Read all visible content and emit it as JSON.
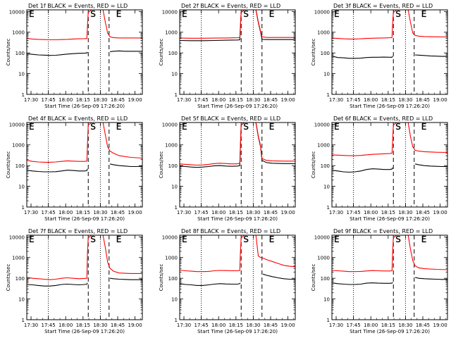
{
  "figure": {
    "xlabel": "Start Time (26-Sep-09 17:26:20)",
    "ylabel": "Counts/sec",
    "colors": {
      "events": "#000000",
      "lld": "#ff0000",
      "axes": "#000000",
      "background": "#ffffff"
    },
    "x_tick_labels": [
      "17:30",
      "17:45",
      "18:00",
      "18:15",
      "18:30",
      "18:45",
      "19:00"
    ],
    "x_tick_values_min": [
      3.67,
      18.67,
      33.67,
      48.67,
      63.67,
      78.67,
      93.67
    ],
    "x_range_min": [
      0,
      100
    ],
    "y_scale": "log",
    "y_range": [
      1,
      12000
    ],
    "y_tick_labels": [
      "1",
      "10",
      "100",
      "1000",
      "10000"
    ],
    "y_tick_values": [
      1,
      10,
      100,
      1000,
      10000
    ],
    "dotted_lines_min": [
      18.67,
      63.67
    ],
    "dashed_lines_min": [
      53.2,
      71.2
    ],
    "segment_markers": [
      "E",
      "S",
      "E"
    ],
    "grid": false,
    "legend": "none"
  },
  "chart_data": [
    {
      "type": "line",
      "title": "Det 1f BLACK = Events, RED = LLD",
      "segment_markers": [
        "E",
        "S",
        "E"
      ],
      "series": [
        {
          "name": "BLACK = Events",
          "color": "#000000",
          "x": [
            0,
            5,
            10,
            15,
            20,
            25,
            30,
            35,
            40,
            45,
            50,
            52,
            52.5,
            53.2,
            71.2,
            72,
            75,
            80,
            85,
            90,
            95,
            100
          ],
          "values": [
            90,
            85,
            80,
            78,
            76,
            77,
            82,
            88,
            92,
            96,
            98,
            100,
            110,
            null,
            null,
            115,
            120,
            125,
            120,
            120,
            120,
            120
          ]
        },
        {
          "name": "RED = LLD",
          "color": "#ff0000",
          "x": [
            0,
            5,
            10,
            15,
            20,
            25,
            30,
            35,
            40,
            45,
            50,
            52,
            52.5,
            53.2,
            56,
            60,
            63,
            66,
            68,
            70,
            72,
            75,
            80,
            90,
            100
          ],
          "values": [
            500,
            470,
            450,
            440,
            430,
            430,
            440,
            450,
            470,
            480,
            490,
            500,
            2000,
            9000,
            12000,
            12000,
            12000,
            12000,
            3000,
            900,
            600,
            550,
            530,
            530,
            530
          ]
        }
      ]
    },
    {
      "type": "line",
      "title": "Det 2f BLACK = Events, RED = LLD",
      "segment_markers": [
        "E",
        "S",
        "E"
      ],
      "series": [
        {
          "name": "BLACK = Events",
          "color": "#000000",
          "x": [
            0,
            10,
            20,
            30,
            40,
            50,
            52,
            53.2,
            56,
            60,
            63,
            66,
            68,
            70,
            71.2,
            75,
            80,
            90,
            100
          ],
          "values": [
            400,
            390,
            390,
            400,
            410,
            420,
            430,
            9000,
            12000,
            12000,
            12000,
            12000,
            3000,
            1000,
            450,
            440,
            440,
            440,
            440
          ]
        },
        {
          "name": "RED = LLD",
          "color": "#ff0000",
          "x": [
            0,
            10,
            20,
            30,
            40,
            50,
            52,
            53.2,
            56,
            60,
            63,
            66,
            68,
            70,
            71.2,
            75,
            80,
            90,
            100
          ],
          "values": [
            520,
            510,
            510,
            520,
            530,
            540,
            550,
            9500,
            12000,
            12000,
            12000,
            12000,
            3200,
            1100,
            600,
            560,
            560,
            560,
            560
          ]
        }
      ]
    },
    {
      "type": "line",
      "title": "Det 3f BLACK = Events, RED = LLD",
      "segment_markers": [
        "E",
        "S",
        "E"
      ],
      "series": [
        {
          "name": "BLACK = Events",
          "color": "#000000",
          "x": [
            0,
            5,
            10,
            15,
            20,
            25,
            30,
            35,
            40,
            45,
            50,
            52,
            52.5,
            53.2,
            71.2,
            72,
            75,
            80,
            85,
            90,
            95,
            100
          ],
          "values": [
            70,
            60,
            58,
            55,
            55,
            56,
            60,
            62,
            62,
            63,
            62,
            62,
            70,
            null,
            null,
            80,
            78,
            75,
            72,
            70,
            68,
            68
          ]
        },
        {
          "name": "RED = LLD",
          "color": "#ff0000",
          "x": [
            0,
            5,
            10,
            15,
            20,
            25,
            30,
            35,
            40,
            45,
            50,
            52,
            52.5,
            53.2,
            56,
            60,
            63,
            66,
            68,
            70,
            72,
            75,
            80,
            90,
            100
          ],
          "values": [
            520,
            500,
            480,
            470,
            470,
            480,
            500,
            510,
            520,
            530,
            540,
            550,
            2500,
            9000,
            12000,
            12000,
            12000,
            12000,
            3000,
            900,
            700,
            650,
            620,
            600,
            590
          ]
        }
      ]
    },
    {
      "type": "line",
      "title": "Det 4f BLACK = Events, RED = LLD",
      "segment_markers": [
        "E",
        "S",
        "E"
      ],
      "series": [
        {
          "name": "BLACK = Events",
          "color": "#000000",
          "x": [
            0,
            5,
            10,
            15,
            20,
            25,
            30,
            35,
            40,
            45,
            50,
            52,
            52.5,
            53.2,
            71.2,
            72,
            75,
            80,
            85,
            90,
            95,
            100
          ],
          "values": [
            60,
            55,
            52,
            50,
            50,
            51,
            55,
            60,
            58,
            55,
            55,
            57,
            70,
            null,
            null,
            120,
            110,
            100,
            95,
            90,
            90,
            92
          ]
        },
        {
          "name": "RED = LLD",
          "color": "#ff0000",
          "x": [
            0,
            5,
            10,
            15,
            20,
            25,
            30,
            35,
            40,
            45,
            50,
            52,
            52.5,
            53.2,
            56,
            60,
            63,
            66,
            68,
            70,
            72,
            75,
            80,
            90,
            100
          ],
          "values": [
            180,
            160,
            150,
            145,
            145,
            150,
            160,
            170,
            165,
            160,
            160,
            165,
            1000,
            9000,
            12000,
            12000,
            12000,
            12000,
            3000,
            800,
            500,
            400,
            300,
            250,
            230
          ]
        }
      ]
    },
    {
      "type": "line",
      "title": "Det 5f BLACK = Events, RED = LLD",
      "segment_markers": [
        "E",
        "S",
        "E"
      ],
      "series": [
        {
          "name": "BLACK = Events",
          "color": "#000000",
          "x": [
            0,
            5,
            10,
            15,
            20,
            25,
            30,
            35,
            40,
            45,
            50,
            52,
            53.2,
            56,
            60,
            63,
            66,
            68,
            70,
            71.2,
            75,
            80,
            90,
            100
          ],
          "values": [
            95,
            90,
            85,
            82,
            85,
            90,
            98,
            100,
            95,
            92,
            95,
            100,
            9000,
            12000,
            12000,
            12000,
            12000,
            2500,
            800,
            180,
            140,
            130,
            125,
            125
          ]
        },
        {
          "name": "RED = LLD",
          "color": "#ff0000",
          "x": [
            0,
            5,
            10,
            15,
            20,
            25,
            30,
            35,
            40,
            45,
            50,
            52,
            53.2,
            56,
            60,
            63,
            66,
            68,
            70,
            71.2,
            75,
            80,
            90,
            100
          ],
          "values": [
            120,
            115,
            110,
            105,
            108,
            115,
            125,
            130,
            125,
            120,
            122,
            130,
            9500,
            12000,
            12000,
            12000,
            12000,
            2700,
            900,
            220,
            180,
            170,
            165,
            165
          ]
        }
      ]
    },
    {
      "type": "line",
      "title": "Det 6f BLACK = Events, RED = LLD",
      "segment_markers": [
        "E",
        "S",
        "E"
      ],
      "series": [
        {
          "name": "BLACK = Events",
          "color": "#000000",
          "x": [
            0,
            5,
            10,
            15,
            20,
            25,
            30,
            35,
            40,
            45,
            50,
            52,
            52.5,
            53.2,
            71.2,
            72,
            75,
            80,
            85,
            90,
            95,
            100
          ],
          "values": [
            60,
            55,
            50,
            48,
            50,
            55,
            65,
            70,
            68,
            65,
            65,
            68,
            80,
            null,
            null,
            120,
            110,
            100,
            95,
            92,
            90,
            90
          ]
        },
        {
          "name": "RED = LLD",
          "color": "#ff0000",
          "x": [
            0,
            5,
            10,
            15,
            20,
            25,
            30,
            35,
            40,
            45,
            50,
            52,
            53.2,
            56,
            60,
            63,
            66,
            68,
            70,
            72,
            75,
            80,
            90,
            100
          ],
          "values": [
            330,
            320,
            310,
            300,
            300,
            310,
            330,
            350,
            360,
            370,
            380,
            400,
            9000,
            12000,
            12000,
            12000,
            12000,
            2500,
            800,
            550,
            500,
            470,
            440,
            430
          ]
        }
      ]
    },
    {
      "type": "line",
      "title": "Det 7f BLACK = Events, RED = LLD",
      "segment_markers": [
        "E",
        "S",
        "E"
      ],
      "series": [
        {
          "name": "BLACK = Events",
          "color": "#000000",
          "x": [
            0,
            5,
            10,
            15,
            20,
            25,
            30,
            35,
            40,
            45,
            50,
            52,
            52.5,
            53.2,
            71.2,
            72,
            75,
            80,
            85,
            90,
            95,
            100
          ],
          "values": [
            50,
            48,
            45,
            42,
            42,
            45,
            50,
            52,
            50,
            48,
            50,
            52,
            60,
            null,
            null,
            100,
            95,
            90,
            88,
            85,
            85,
            85
          ]
        },
        {
          "name": "RED = LLD",
          "color": "#ff0000",
          "x": [
            0,
            5,
            10,
            15,
            20,
            25,
            30,
            35,
            40,
            45,
            50,
            52,
            52.5,
            53.2,
            56,
            60,
            63,
            66,
            68,
            70,
            72,
            75,
            80,
            90,
            100
          ],
          "values": [
            110,
            100,
            95,
            90,
            85,
            90,
            100,
            105,
            100,
            95,
            98,
            100,
            1500,
            9000,
            12000,
            12000,
            12000,
            12000,
            3000,
            600,
            300,
            220,
            180,
            170,
            170
          ]
        }
      ]
    },
    {
      "type": "line",
      "title": "Det 8f BLACK = Events, RED = LLD",
      "segment_markers": [
        "E",
        "S",
        "E"
      ],
      "series": [
        {
          "name": "BLACK = Events",
          "color": "#000000",
          "x": [
            0,
            5,
            10,
            15,
            20,
            25,
            30,
            35,
            40,
            45,
            50,
            52,
            52.5,
            53.2,
            71.2,
            72,
            75,
            80,
            85,
            90,
            95,
            100
          ],
          "values": [
            55,
            50,
            48,
            45,
            45,
            48,
            52,
            55,
            53,
            52,
            52,
            55,
            60,
            null,
            null,
            160,
            140,
            120,
            105,
            95,
            90,
            90
          ]
        },
        {
          "name": "RED = LLD",
          "color": "#ff0000",
          "x": [
            0,
            5,
            10,
            15,
            20,
            25,
            30,
            35,
            40,
            45,
            50,
            52,
            52.5,
            53.2,
            56,
            60,
            63,
            66,
            68,
            70,
            72,
            75,
            80,
            85,
            90,
            95,
            100
          ],
          "values": [
            250,
            230,
            220,
            210,
            210,
            215,
            230,
            240,
            235,
            230,
            230,
            240,
            1500,
            9000,
            12000,
            12000,
            12000,
            12000,
            1200,
            1000,
            950,
            800,
            650,
            520,
            420,
            380,
            360
          ]
        }
      ]
    },
    {
      "type": "line",
      "title": "Det 9f BLACK = Events, RED = LLD",
      "segment_markers": [
        "E",
        "S",
        "E"
      ],
      "series": [
        {
          "name": "BLACK = Events",
          "color": "#000000",
          "x": [
            0,
            5,
            10,
            15,
            20,
            25,
            30,
            35,
            40,
            45,
            50,
            52,
            52.5,
            53.2,
            71.2,
            72,
            75,
            80,
            85,
            90,
            95,
            100
          ],
          "values": [
            60,
            55,
            52,
            50,
            50,
            52,
            58,
            60,
            58,
            57,
            57,
            58,
            65,
            null,
            null,
            110,
            100,
            95,
            92,
            90,
            88,
            88
          ]
        },
        {
          "name": "RED = LLD",
          "color": "#ff0000",
          "x": [
            0,
            5,
            10,
            15,
            20,
            25,
            30,
            35,
            40,
            45,
            50,
            52,
            52.5,
            53.2,
            56,
            60,
            63,
            66,
            68,
            70,
            72,
            75,
            80,
            90,
            100
          ],
          "values": [
            240,
            230,
            220,
            210,
            210,
            215,
            225,
            235,
            230,
            225,
            225,
            230,
            1600,
            9000,
            12000,
            12000,
            12000,
            12000,
            2500,
            700,
            400,
            320,
            290,
            270,
            260
          ]
        }
      ]
    }
  ]
}
